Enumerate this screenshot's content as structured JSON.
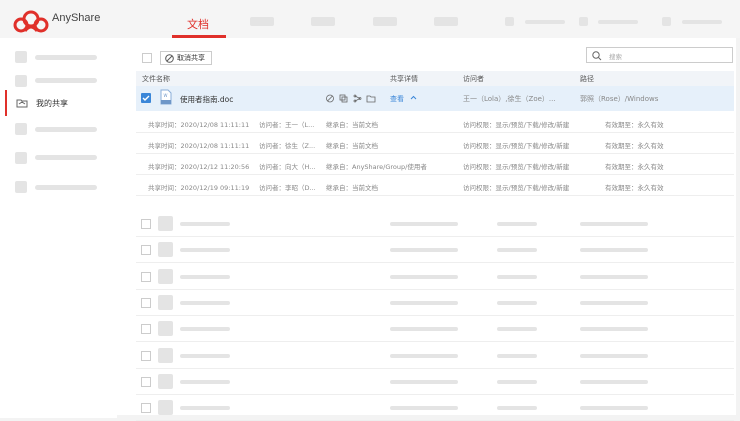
{
  "app": {
    "brand": "AnyShare",
    "logo_color": "#e0302a"
  },
  "nav": {
    "active_tab": "文档"
  },
  "sidebar": {
    "active_item": "我的共享"
  },
  "toolbar": {
    "cancel_share": "取消共享",
    "search_placeholder": "搜索"
  },
  "table": {
    "headers": [
      "文件名称",
      "共享详情",
      "访问者",
      "路径"
    ],
    "selected_row": {
      "name": "使用者指南.doc",
      "details_link": "查看",
      "visitors": "王一（Lola）,徐生（Zoe）...",
      "path": "郭照（Rose）/Windows",
      "checked": true
    },
    "details": [
      {
        "time": "共享时间：2020/12/08 11:11:11",
        "visitor": "访问者：王一（L...",
        "inherit": "继承自：当前文档",
        "perm": "访问权限：显示/预览/下载/修改/新建",
        "expiry": "有效期至：永久有效"
      },
      {
        "time": "共享时间：2020/12/08 11:11:11",
        "visitor": "访问者：徐生（Z...",
        "inherit": "继承自：当前文档",
        "perm": "访问权限：显示/预览/下载/修改/新建",
        "expiry": "有效期至：永久有效"
      },
      {
        "time": "共享时间：2020/12/12 11:20:56",
        "visitor": "访问者：向大（H...",
        "inherit": "继承自：AnyShare/Group/使用者",
        "perm": "访问权限：显示/预览/下载/修改/新建",
        "expiry": "有效期至：永久有效"
      },
      {
        "time": "共享时间：2020/12/19 09:11:19",
        "visitor": "访问者：李昭（D...",
        "inherit": "继承自：当前文档",
        "perm": "访问权限：显示/预览/下载/修改/新建",
        "expiry": "有效期至：永久有效"
      }
    ]
  },
  "colors": {
    "accent": "#e0302a",
    "link": "#3a86d8",
    "selected_row": "#e6f0fa"
  }
}
